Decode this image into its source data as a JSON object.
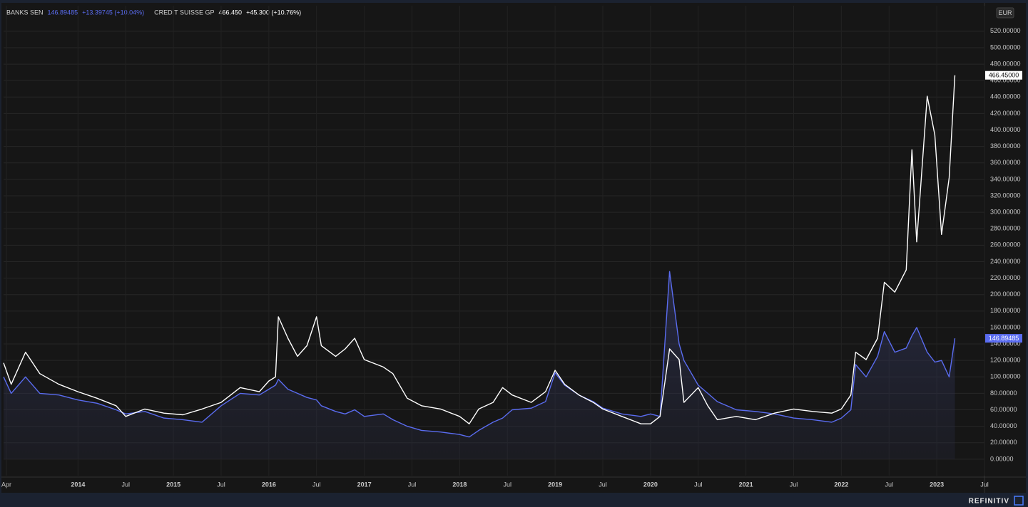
{
  "chart_data": {
    "type": "line",
    "currency": "EUR",
    "source": "REFINITIV",
    "x": [
      2013.22,
      2013.3,
      2013.45,
      2013.6,
      2013.8,
      2014.0,
      2014.2,
      2014.4,
      2014.5,
      2014.7,
      2014.9,
      2015.1,
      2015.3,
      2015.5,
      2015.7,
      2015.9,
      2016.0,
      2016.07,
      2016.1,
      2016.2,
      2016.3,
      2016.4,
      2016.5,
      2016.55,
      2016.7,
      2016.8,
      2016.9,
      2017.0,
      2017.2,
      2017.3,
      2017.45,
      2017.6,
      2017.8,
      2018.0,
      2018.1,
      2018.2,
      2018.35,
      2018.45,
      2018.55,
      2018.75,
      2018.9,
      2019.0,
      2019.1,
      2019.25,
      2019.4,
      2019.5,
      2019.7,
      2019.9,
      2020.0,
      2020.1,
      2020.2,
      2020.3,
      2020.35,
      2020.5,
      2020.6,
      2020.7,
      2020.9,
      2021.1,
      2021.3,
      2021.5,
      2021.7,
      2021.9,
      2022.0,
      2022.1,
      2022.15,
      2022.26,
      2022.38,
      2022.45,
      2022.56,
      2022.68,
      2022.74,
      2022.79,
      2022.9,
      2022.98,
      2023.05,
      2023.13,
      2023.19
    ],
    "series": [
      {
        "name": "BANKS SEN",
        "color": "#5a6cf0",
        "area": true,
        "header_value": "146.89485",
        "header_change": "+13.39745 (+10.04%)",
        "axis_label": "146.89485",
        "values": [
          100,
          80,
          100,
          80,
          78,
          72,
          68,
          60,
          55,
          58,
          50,
          48,
          45,
          65,
          80,
          78,
          85,
          90,
          97,
          85,
          80,
          75,
          72,
          65,
          58,
          55,
          60,
          52,
          55,
          48,
          40,
          35,
          33,
          30,
          27,
          35,
          45,
          50,
          60,
          62,
          70,
          105,
          90,
          78,
          70,
          62,
          55,
          52,
          55,
          52,
          228,
          140,
          120,
          90,
          80,
          70,
          60,
          58,
          55,
          50,
          48,
          45,
          50,
          60,
          115,
          100,
          125,
          155,
          130,
          135,
          150,
          160,
          130,
          118,
          120,
          100,
          146.89485
        ]
      },
      {
        "name": "CREDIT SUISSE GP",
        "color": "#ffffff",
        "area": false,
        "header_value": "466.450",
        "header_change": "+45.300 (+10.76%)",
        "axis_label": "466.45000",
        "values": [
          117,
          91,
          130,
          104,
          91,
          82,
          74,
          65,
          52,
          61,
          56,
          54,
          61,
          69,
          87,
          82,
          95,
          100,
          173,
          147,
          125,
          138,
          173,
          138,
          125,
          134,
          147,
          121,
          112,
          104,
          74,
          65,
          61,
          52,
          43,
          61,
          69,
          87,
          78,
          69,
          82,
          108,
          91,
          78,
          69,
          61,
          52,
          43,
          43,
          52,
          134,
          121,
          69,
          87,
          65,
          48,
          52,
          48,
          56,
          61,
          58,
          56,
          61,
          78,
          130,
          121,
          147,
          215,
          203,
          230,
          376,
          264,
          441,
          394,
          273,
          342,
          466.45
        ]
      }
    ],
    "xlim": [
      2013.22,
      2023.5
    ],
    "xticks": [
      {
        "value": 2013.25,
        "label": "Apr"
      },
      2014,
      {
        "value": 2014.5,
        "label": "Jul"
      },
      2015,
      {
        "value": 2015.5,
        "label": "Jul"
      },
      2016,
      {
        "value": 2016.5,
        "label": "Jul"
      },
      2017,
      {
        "value": 2017.5,
        "label": "Jul"
      },
      2018,
      {
        "value": 2018.5,
        "label": "Jul"
      },
      2019,
      {
        "value": 2019.5,
        "label": "Jul"
      },
      2020,
      {
        "value": 2020.5,
        "label": "Jul"
      },
      2021,
      {
        "value": 2021.5,
        "label": "Jul"
      },
      2022,
      {
        "value": 2022.5,
        "label": "Jul"
      },
      2023,
      {
        "value": 2023.5,
        "label": "Jul"
      }
    ],
    "ylim": [
      -20,
      551
    ],
    "yticks": [
      {
        "value": 0,
        "label": "0.00000"
      },
      {
        "value": 20,
        "label": "20.00000"
      },
      {
        "value": 40,
        "label": "40.00000"
      },
      {
        "value": 60,
        "label": "60.00000"
      },
      {
        "value": 80,
        "label": "80.00000"
      },
      {
        "value": 100,
        "label": "100.00000"
      },
      {
        "value": 120,
        "label": "120.00000"
      },
      {
        "value": 140,
        "label": "140.00000"
      },
      {
        "value": 160,
        "label": "160.00000"
      },
      {
        "value": 180,
        "label": "180.00000"
      },
      {
        "value": 200,
        "label": "200.00000"
      },
      {
        "value": 220,
        "label": "220.00000"
      },
      {
        "value": 240,
        "label": "240.00000"
      },
      {
        "value": 260,
        "label": "260.00000"
      },
      {
        "value": 280,
        "label": "280.00000"
      },
      {
        "value": 300,
        "label": "300.00000"
      },
      {
        "value": 320,
        "label": "320.00000"
      },
      {
        "value": 340,
        "label": "340.00000"
      },
      {
        "value": 360,
        "label": "360.00000"
      },
      {
        "value": 380,
        "label": "380.00000"
      },
      {
        "value": 400,
        "label": "400.00000"
      },
      {
        "value": 420,
        "label": "420.00000"
      },
      {
        "value": 440,
        "label": "440.00000"
      },
      {
        "value": 460,
        "label": "460.00000"
      },
      {
        "value": 480,
        "label": "480.00000"
      },
      {
        "value": 500,
        "label": "500.00000"
      },
      {
        "value": 520,
        "label": "520.00000"
      }
    ],
    "grid": true
  }
}
